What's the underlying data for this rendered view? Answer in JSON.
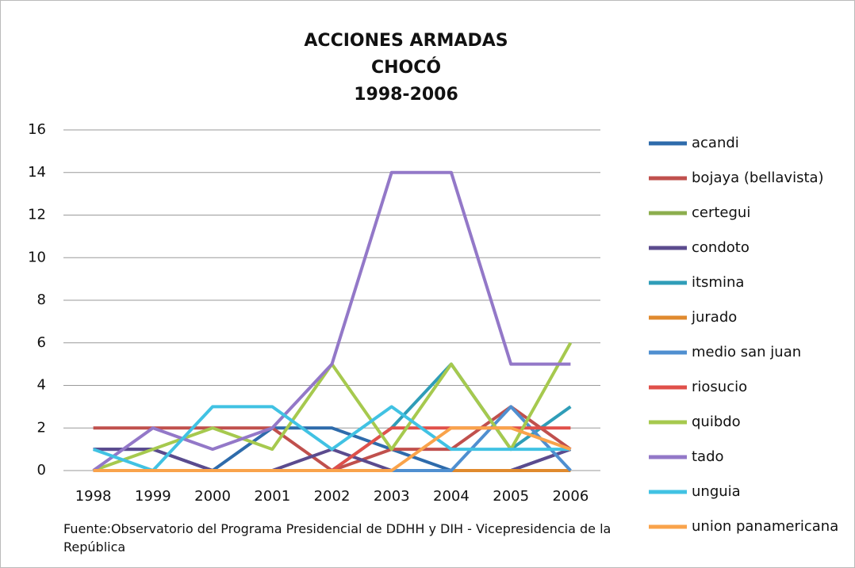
{
  "chart_data": {
    "type": "line",
    "title": [
      "ACCIONES ARMADAS",
      "CHOCÓ",
      "1998-2006"
    ],
    "source": "Fuente:Observatorio del Programa Presidencial de DDHH y DIH - Vicepresidencia de la República",
    "categories": [
      "1998",
      "1999",
      "2000",
      "2001",
      "2002",
      "2003",
      "2004",
      "2005",
      "2006"
    ],
    "ylim": [
      0,
      16
    ],
    "yticks": [
      0,
      2,
      4,
      6,
      8,
      10,
      12,
      14,
      16
    ],
    "grid": true,
    "legend": "right",
    "series": [
      {
        "name": "acandi",
        "color": "#2e6bab",
        "values": [
          1,
          1,
          0,
          2,
          2,
          1,
          0,
          0,
          1
        ]
      },
      {
        "name": "bojaya (bellavista)",
        "color": "#c0504d",
        "values": [
          2,
          2,
          2,
          2,
          0,
          1,
          1,
          3,
          1
        ]
      },
      {
        "name": "certegui",
        "color": "#8cae4e",
        "values": [
          0,
          0,
          0,
          0,
          0,
          0,
          0,
          0,
          0
        ]
      },
      {
        "name": "condoto",
        "color": "#5b4b8e",
        "values": [
          1,
          1,
          0,
          0,
          1,
          0,
          0,
          0,
          1
        ]
      },
      {
        "name": "itsmina",
        "color": "#2f9db8",
        "values": [
          0,
          0,
          0,
          0,
          0,
          2,
          5,
          1,
          3
        ]
      },
      {
        "name": "jurado",
        "color": "#e08a2e",
        "values": [
          0,
          0,
          0,
          0,
          0,
          0,
          0,
          0,
          0
        ]
      },
      {
        "name": "medio san juan",
        "color": "#4f8fd0",
        "values": [
          0,
          0,
          0,
          0,
          0,
          0,
          0,
          3,
          0
        ]
      },
      {
        "name": "riosucio",
        "color": "#e0504a",
        "values": [
          0,
          0,
          0,
          0,
          0,
          2,
          2,
          2,
          2
        ]
      },
      {
        "name": "quibdo",
        "color": "#a6c94e",
        "values": [
          0,
          1,
          2,
          1,
          5,
          1,
          5,
          1,
          6
        ]
      },
      {
        "name": "tado",
        "color": "#9378c8",
        "values": [
          0,
          2,
          1,
          2,
          5,
          14,
          14,
          5,
          5
        ]
      },
      {
        "name": "unguia",
        "color": "#41c2e3",
        "values": [
          1,
          0,
          3,
          3,
          1,
          3,
          1,
          1,
          1
        ]
      },
      {
        "name": "union panamericana",
        "color": "#f9a34b",
        "values": [
          0,
          0,
          0,
          0,
          0,
          0,
          2,
          2,
          1
        ]
      }
    ]
  }
}
